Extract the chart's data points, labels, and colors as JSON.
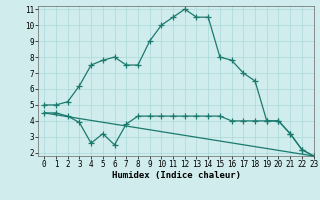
{
  "xlabel": "Humidex (Indice chaleur)",
  "line1_x": [
    0,
    1,
    2,
    3,
    4,
    5,
    6,
    7,
    8,
    9,
    10,
    11,
    12,
    13,
    14,
    15,
    16,
    17,
    18,
    19,
    20,
    21,
    22,
    23
  ],
  "line1_y": [
    5.0,
    5.0,
    5.2,
    6.2,
    7.5,
    7.8,
    8.0,
    7.5,
    7.5,
    9.0,
    10.0,
    10.5,
    11.0,
    10.5,
    10.5,
    8.0,
    7.8,
    7.0,
    6.5,
    4.0,
    4.0,
    3.2,
    2.2,
    1.8
  ],
  "line2_x": [
    0,
    1,
    2,
    3,
    4,
    5,
    6,
    7,
    8,
    9,
    10,
    11,
    12,
    13,
    14,
    15,
    16,
    17,
    18,
    19,
    20,
    21,
    22,
    23
  ],
  "line2_y": [
    4.5,
    4.5,
    4.3,
    3.9,
    2.6,
    3.2,
    2.5,
    3.8,
    4.3,
    4.3,
    4.3,
    4.3,
    4.3,
    4.3,
    4.3,
    4.3,
    4.0,
    4.0,
    4.0,
    4.0,
    4.0,
    3.2,
    2.2,
    1.8
  ],
  "line3_x": [
    0,
    23
  ],
  "line3_y": [
    4.5,
    1.8
  ],
  "line_color": "#1a7a6e",
  "bg_color": "#d0ecec",
  "grid_color": "#aadada",
  "xlim": [
    -0.5,
    23
  ],
  "ylim": [
    1.8,
    11.2
  ],
  "yticks": [
    2,
    3,
    4,
    5,
    6,
    7,
    8,
    9,
    10,
    11
  ],
  "xticks": [
    0,
    1,
    2,
    3,
    4,
    5,
    6,
    7,
    8,
    9,
    10,
    11,
    12,
    13,
    14,
    15,
    16,
    17,
    18,
    19,
    20,
    21,
    22,
    23
  ],
  "tick_fontsize": 5.5,
  "xlabel_fontsize": 6.5
}
